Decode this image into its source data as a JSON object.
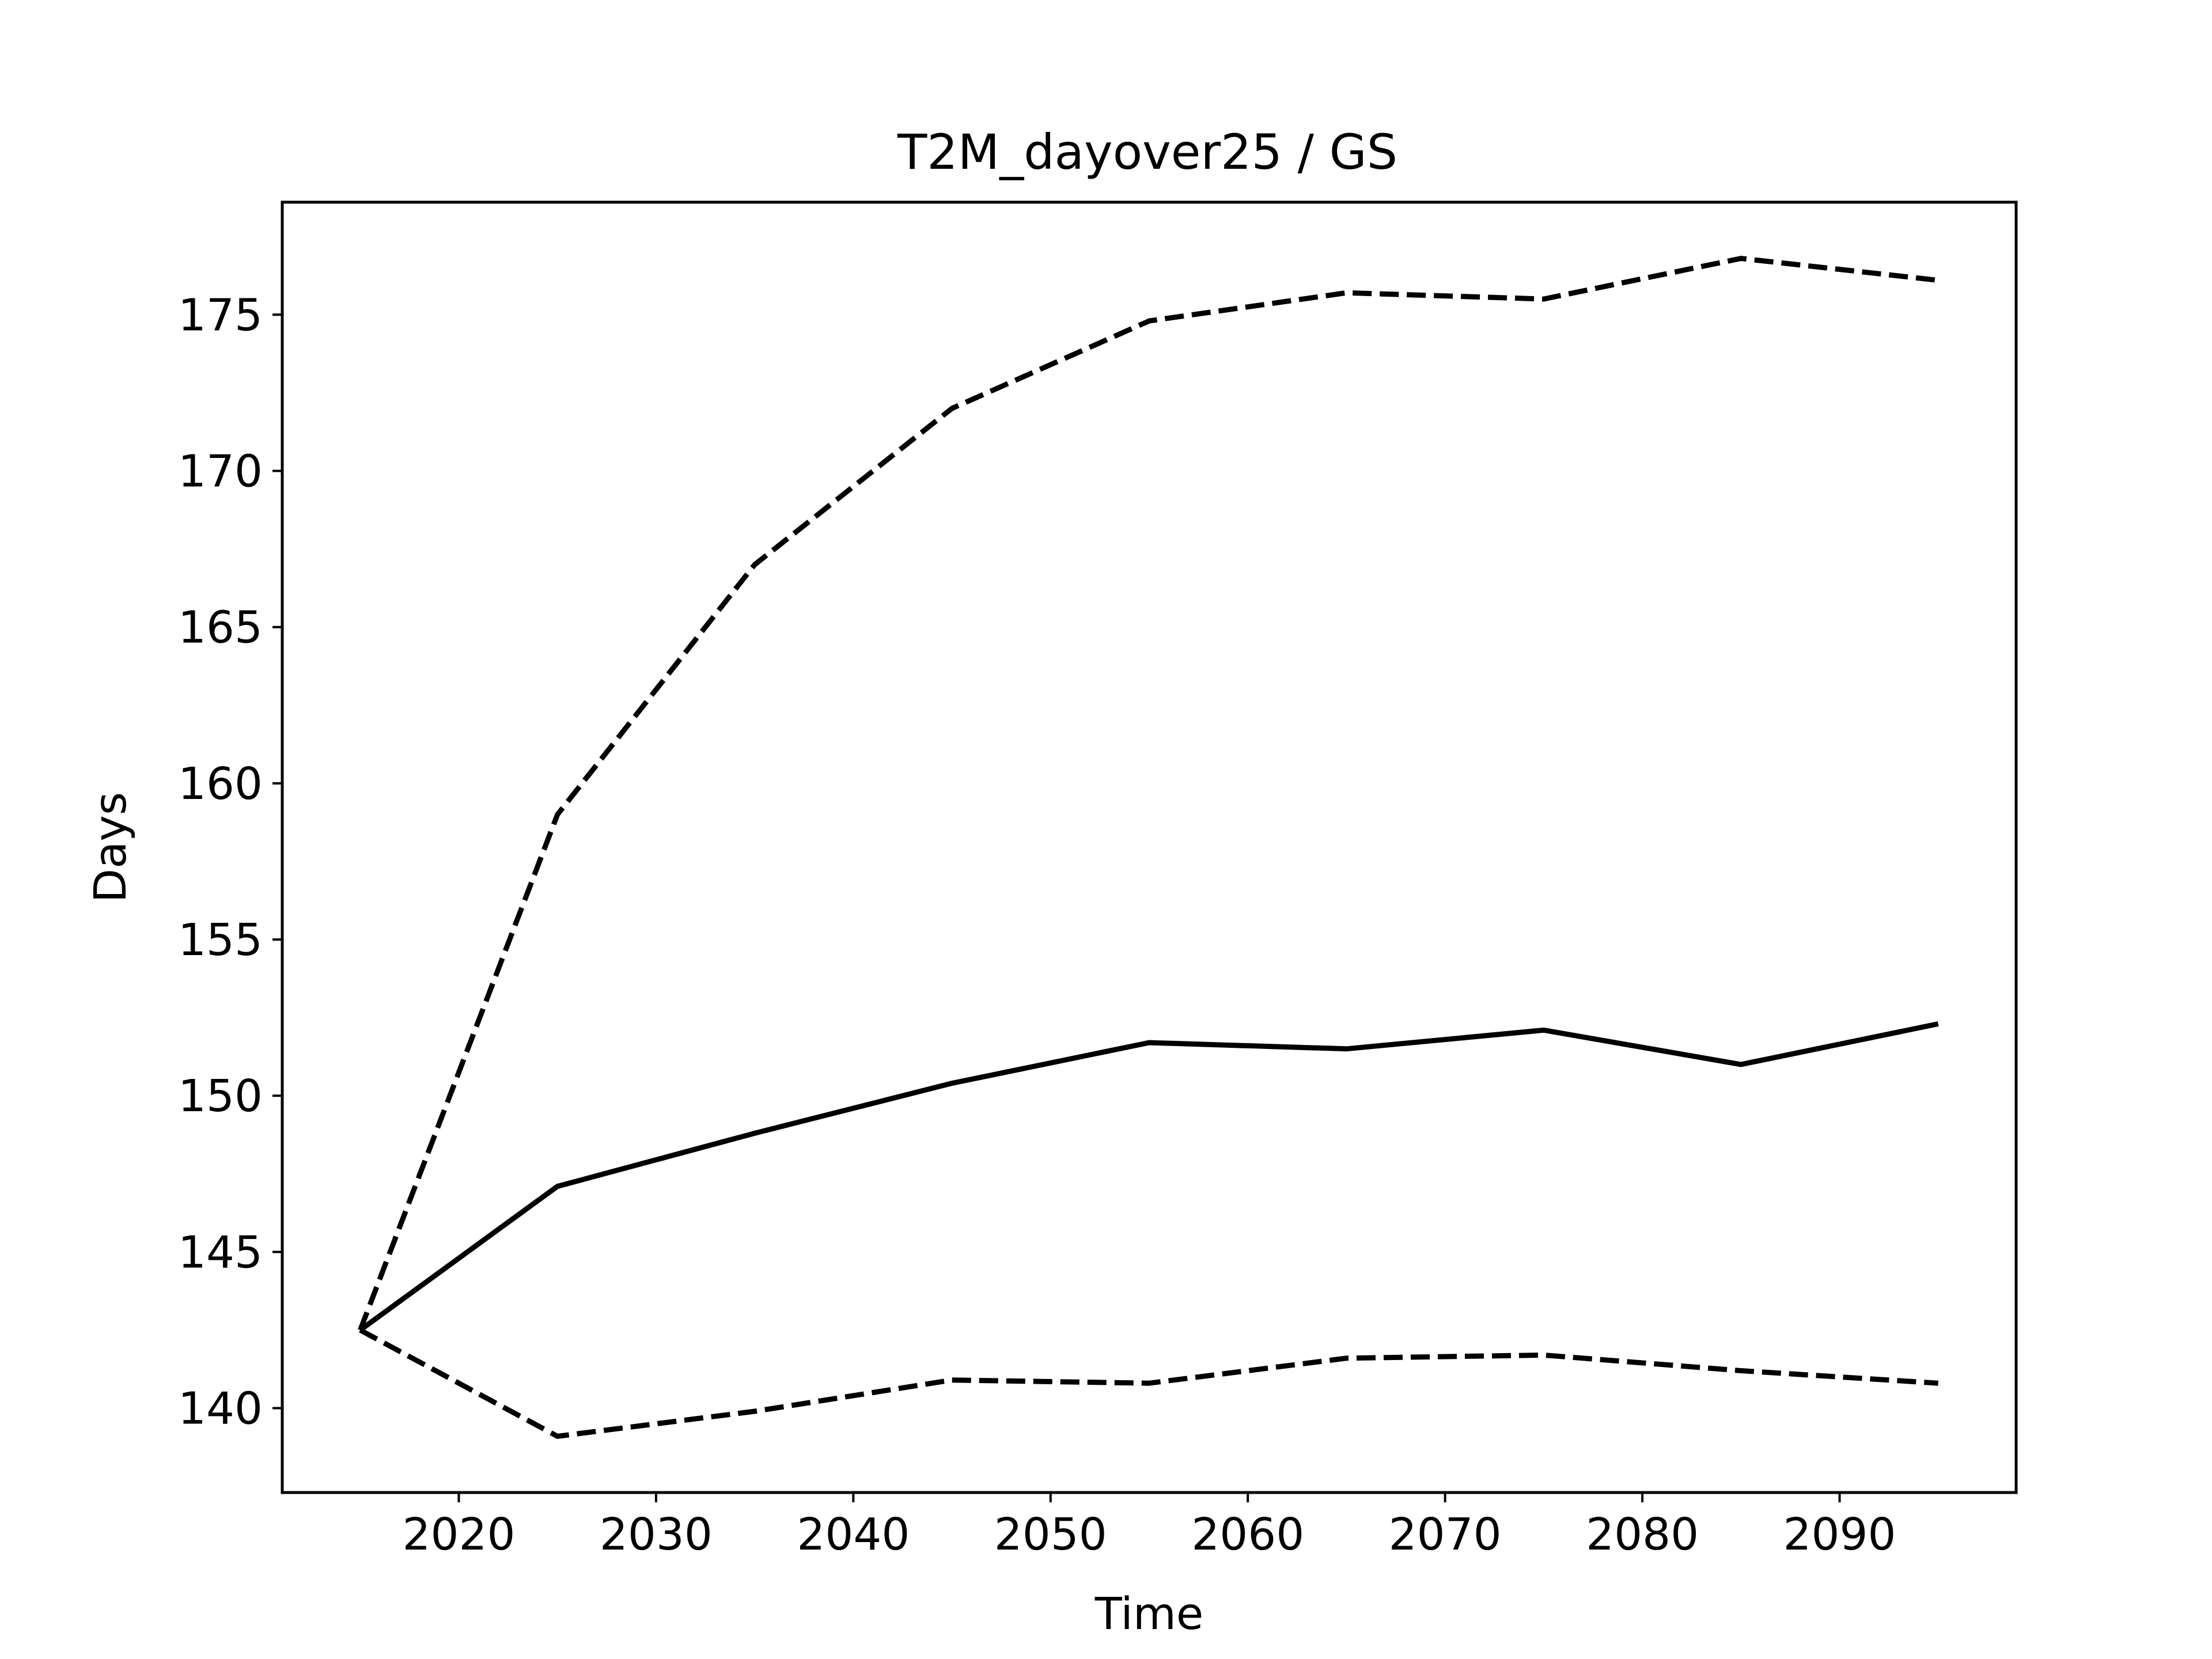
{
  "chart_data": {
    "type": "line",
    "title": "T2M_dayover25 / GS",
    "xlabel": "Time",
    "ylabel": "Days",
    "xlim": [
      2011.05,
      2098.95
    ],
    "ylim": [
      137.3,
      178.6
    ],
    "xticks": [
      2020,
      2030,
      2040,
      2050,
      2060,
      2070,
      2080,
      2090
    ],
    "yticks": [
      140,
      145,
      150,
      155,
      160,
      165,
      170,
      175
    ],
    "x": [
      2015,
      2025,
      2035,
      2045,
      2055,
      2065,
      2075,
      2085,
      2095
    ],
    "grid": false,
    "legend": "none",
    "series": [
      {
        "style": "dashed",
        "color": "#000000",
        "values": [
          142.5,
          159.0,
          167.0,
          172.0,
          174.8,
          175.7,
          175.5,
          176.8,
          176.1
        ]
      },
      {
        "style": "solid",
        "color": "#000000",
        "values": [
          142.5,
          147.1,
          148.8,
          150.4,
          151.7,
          151.5,
          152.1,
          151.0,
          152.3
        ]
      },
      {
        "style": "dashed",
        "color": "#000000",
        "values": [
          142.5,
          139.1,
          139.9,
          140.9,
          140.8,
          141.6,
          141.7,
          141.2,
          140.8
        ]
      }
    ]
  }
}
